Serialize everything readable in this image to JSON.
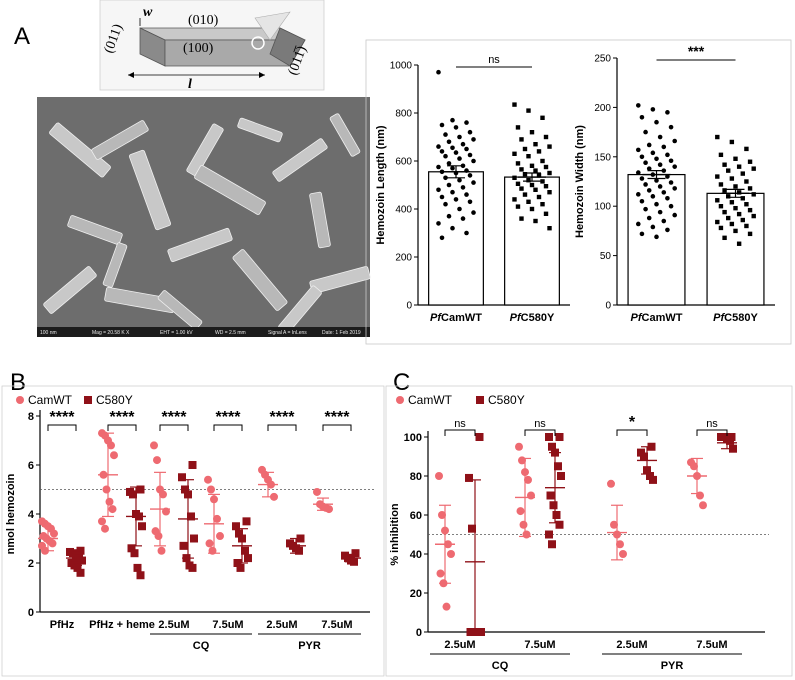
{
  "panel_labels": {
    "a": "A",
    "b": "B",
    "c": "C"
  },
  "crystal": {
    "face_top": "(010)",
    "face_front": "(100)",
    "face_left": "(011)",
    "face_right": "(011̅)",
    "width_symbol": "w",
    "length_symbol": "l"
  },
  "sem_info": {
    "scale": "100 nm",
    "mag": "Mag = 20.58 K X",
    "eht": "EHT = 1.00 kV",
    "wd": "WD = 2.5 mm",
    "signal": "Signal A = InLens",
    "date": "Date: 1 Feb 2019"
  },
  "colors": {
    "camwt": "#ee6a71",
    "c580y": "#8f1118",
    "black": "#000000"
  },
  "chart_data": [
    {
      "id": "A_length",
      "type": "bar-scatter",
      "title": "",
      "ylabel": "Hemozoin Length (nm)",
      "ylim": [
        0,
        1000
      ],
      "yticks": [
        "0",
        "200",
        "400",
        "600",
        "800",
        "1000"
      ],
      "categories": [
        {
          "italic": "Pf",
          "rest": "CamWT"
        },
        {
          "italic": "Pf",
          "rest": "C580Y"
        }
      ],
      "bars": [
        {
          "mean": 555,
          "sem": 25,
          "points": [
            970,
            770,
            760,
            750,
            740,
            720,
            710,
            700,
            690,
            680,
            670,
            660,
            655,
            650,
            640,
            635,
            625,
            620,
            610,
            600,
            590,
            580,
            575,
            570,
            560,
            555,
            550,
            540,
            530,
            520,
            510,
            500,
            490,
            480,
            470,
            460,
            450,
            440,
            430,
            420,
            400,
            385,
            370,
            360,
            340,
            320,
            300,
            280
          ]
        },
        {
          "mean": 533,
          "sem": 17,
          "points": [
            835,
            810,
            780,
            740,
            720,
            700,
            690,
            670,
            660,
            650,
            640,
            630,
            620,
            600,
            590,
            580,
            575,
            565,
            560,
            550,
            545,
            540,
            530,
            520,
            515,
            505,
            500,
            495,
            485,
            480,
            470,
            460,
            450,
            440,
            430,
            420,
            410,
            400,
            380,
            360,
            350,
            320
          ]
        }
      ],
      "significance": "ns"
    },
    {
      "id": "A_width",
      "type": "bar-scatter",
      "title": "",
      "ylabel": "Hemozoin Width (nm)",
      "ylim": [
        0,
        250
      ],
      "yticks": [
        "0",
        "50",
        "100",
        "150",
        "200",
        "250"
      ],
      "categories": [
        {
          "italic": "Pf",
          "rest": "CamWT"
        },
        {
          "italic": "Pf",
          "rest": "C580Y"
        }
      ],
      "bars": [
        {
          "mean": 132,
          "sem": 4,
          "points": [
            202,
            198,
            195,
            190,
            185,
            180,
            175,
            170,
            166,
            162,
            160,
            157,
            154,
            152,
            150,
            148,
            146,
            144,
            142,
            140,
            138,
            136,
            134,
            132,
            130,
            128,
            126,
            124,
            122,
            120,
            118,
            116,
            114,
            112,
            110,
            108,
            105,
            102,
            100,
            97,
            94,
            91,
            88,
            85,
            82,
            79,
            76,
            72,
            69
          ]
        },
        {
          "mean": 113,
          "sem": 4,
          "points": [
            170,
            165,
            158,
            152,
            148,
            145,
            142,
            140,
            138,
            136,
            133,
            130,
            128,
            125,
            122,
            120,
            118,
            116,
            114,
            112,
            110,
            108,
            106,
            104,
            102,
            100,
            98,
            96,
            94,
            92,
            90,
            88,
            86,
            84,
            82,
            80,
            78,
            75,
            72,
            68,
            62
          ]
        }
      ],
      "significance": "***"
    },
    {
      "id": "B",
      "type": "dot-errorbar",
      "ylabel": "nmol hemozoin",
      "ylim": [
        0,
        8
      ],
      "yticks": [
        "0",
        "2",
        "4",
        "6",
        "8"
      ],
      "reference_line": 5,
      "legend": [
        "CamWT",
        "C580Y"
      ],
      "categories": [
        "PfHz",
        "PfHz + heme",
        "2.5uM",
        "7.5uM",
        "2.5uM",
        "7.5uM"
      ],
      "group_labels": [
        {
          "label": "CQ",
          "from": 2,
          "to": 3
        },
        {
          "label": "PYR",
          "from": 4,
          "to": 5
        }
      ],
      "significance": [
        "****",
        "****",
        "****",
        "****",
        "****",
        "****"
      ],
      "series": [
        {
          "name": "CamWT",
          "marker": "circle",
          "groups": [
            {
              "mean": 3.0,
              "sd": 0.5,
              "points": [
                3.7,
                3.6,
                3.5,
                3.4,
                3.2,
                3.1,
                3.0,
                2.9,
                2.8,
                2.7,
                2.5
              ]
            },
            {
              "mean": 5.6,
              "sd": 1.7,
              "points": [
                7.3,
                7.2,
                7.0,
                6.8,
                6.4,
                5.6,
                5.0,
                4.5,
                4.2,
                3.7,
                3.4
              ]
            },
            {
              "mean": 4.2,
              "sd": 1.5,
              "points": [
                6.8,
                6.2,
                5.0,
                4.8,
                4.1,
                3.3,
                3.1,
                2.5
              ]
            },
            {
              "mean": 3.6,
              "sd": 1.2,
              "points": [
                5.4,
                5.0,
                4.6,
                3.8,
                3.1,
                2.8,
                2.5
              ]
            },
            {
              "mean": 5.2,
              "sd": 0.5,
              "points": [
                5.8,
                5.6,
                5.4,
                5.2,
                4.7
              ]
            },
            {
              "mean": 4.4,
              "sd": 0.25,
              "points": [
                4.9,
                4.4,
                4.3,
                4.25,
                4.2
              ]
            }
          ]
        },
        {
          "name": "C580Y",
          "marker": "square",
          "groups": [
            {
              "mean": 2.2,
              "sd": 0.3,
              "points": [
                2.5,
                2.45,
                2.4,
                2.3,
                2.2,
                2.1,
                2.0,
                1.9,
                1.8,
                1.6
              ]
            },
            {
              "mean": 3.9,
              "sd": 1.2,
              "points": [
                5.0,
                4.9,
                4.8,
                4.0,
                3.9,
                3.5,
                2.6,
                2.4,
                1.8,
                1.5
              ]
            },
            {
              "mean": 3.8,
              "sd": 1.6,
              "points": [
                6.0,
                5.5,
                5.0,
                4.8,
                3.9,
                3.0,
                2.7,
                2.2,
                1.9,
                1.8
              ]
            },
            {
              "mean": 2.7,
              "sd": 0.7,
              "points": [
                3.7,
                3.5,
                3.2,
                3.0,
                2.5,
                2.2,
                2.0,
                1.8
              ]
            },
            {
              "mean": 2.7,
              "sd": 0.3,
              "points": [
                3.0,
                2.8,
                2.7,
                2.6,
                2.5
              ]
            },
            {
              "mean": 2.2,
              "sd": 0.15,
              "points": [
                2.4,
                2.3,
                2.2,
                2.1,
                2.05
              ]
            }
          ]
        }
      ]
    },
    {
      "id": "C",
      "type": "dot-errorbar",
      "ylabel": "% inhibition",
      "ylim": [
        0,
        100
      ],
      "yticks": [
        "0",
        "20",
        "40",
        "60",
        "80",
        "100"
      ],
      "reference_line": 50,
      "legend": [
        "CamWT",
        "C580Y"
      ],
      "categories": [
        "2.5uM",
        "7.5uM",
        "2.5uM",
        "7.5uM"
      ],
      "group_labels": [
        {
          "label": "CQ",
          "from": 0,
          "to": 1
        },
        {
          "label": "PYR",
          "from": 2,
          "to": 3
        }
      ],
      "significance": [
        "ns",
        "ns",
        "*",
        "ns"
      ],
      "series": [
        {
          "name": "CamWT",
          "marker": "circle",
          "groups": [
            {
              "mean": 45,
              "sd": 20,
              "points": [
                80,
                60,
                52,
                45,
                40,
                30,
                25,
                13
              ]
            },
            {
              "mean": 69,
              "sd": 20,
              "points": [
                95,
                88,
                82,
                78,
                70,
                62,
                55,
                50
              ]
            },
            {
              "mean": 51,
              "sd": 14,
              "points": [
                76,
                55,
                50,
                45,
                40
              ]
            },
            {
              "mean": 80,
              "sd": 9,
              "points": [
                87,
                85,
                80,
                70,
                65
              ]
            }
          ]
        },
        {
          "name": "C580Y",
          "marker": "square",
          "groups": [
            {
              "mean": 36,
              "sd": 42,
              "points": [
                100,
                79,
                53,
                0,
                0,
                0,
                0,
                0
              ]
            },
            {
              "mean": 74,
              "sd": 18,
              "points": [
                100,
                100,
                95,
                92,
                85,
                80,
                70,
                65,
                60,
                55,
                50,
                45
              ]
            },
            {
              "mean": 88,
              "sd": 7,
              "points": [
                95,
                92,
                90,
                83,
                80,
                78
              ]
            },
            {
              "mean": 97,
              "sd": 3,
              "points": [
                100,
                100,
                100,
                99,
                98,
                94
              ]
            }
          ]
        }
      ]
    }
  ]
}
